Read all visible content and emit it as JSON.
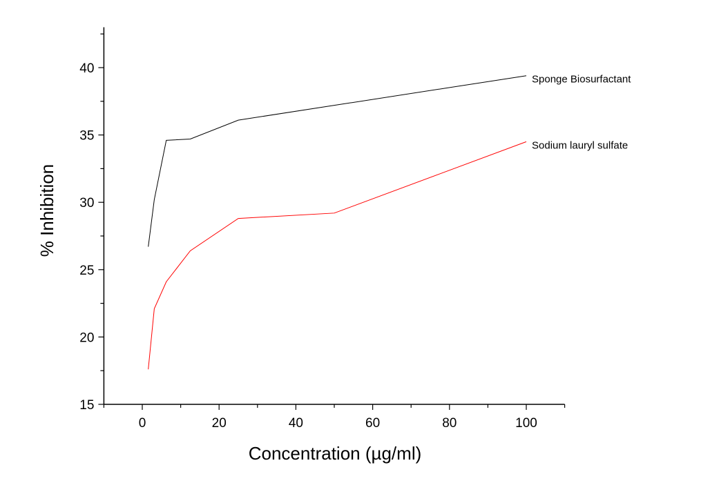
{
  "chart_data": {
    "type": "line",
    "title": "",
    "xlabel": "Concentration (µg/ml)",
    "ylabel": "% Inhibition",
    "xlim": [
      -10,
      110
    ],
    "ylim": [
      15,
      43
    ],
    "xticks": [
      0,
      20,
      40,
      60,
      80,
      100
    ],
    "yticks": [
      15,
      20,
      25,
      30,
      35,
      40
    ],
    "grid": false,
    "legend": "inline labels at line ends",
    "series": [
      {
        "name": "Sponge Biosurfactant",
        "color": "#000000",
        "x": [
          1.56,
          3.125,
          6.25,
          12.5,
          25,
          50,
          100
        ],
        "y": [
          26.7,
          30.2,
          34.6,
          34.7,
          36.1,
          37.2,
          39.4
        ]
      },
      {
        "name": "Sodium lauryl sulfate",
        "color": "#ff0000",
        "x": [
          1.56,
          3.125,
          6.25,
          12.5,
          25,
          50,
          100
        ],
        "y": [
          17.6,
          22.1,
          24.1,
          26.4,
          28.8,
          29.2,
          34.5
        ]
      }
    ]
  }
}
